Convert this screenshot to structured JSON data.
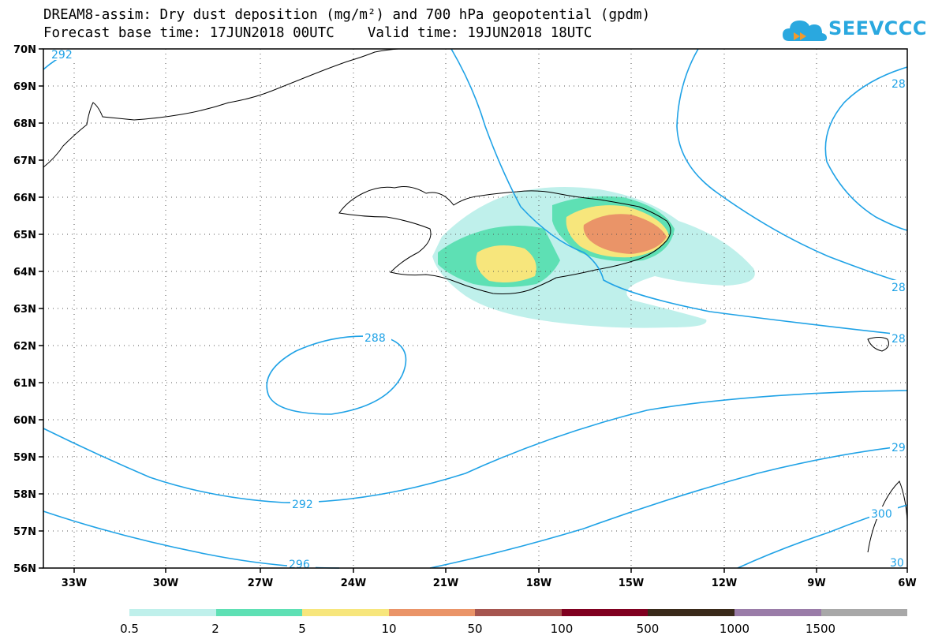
{
  "header": {
    "title_line1": "DREAM8-assim: Dry dust deposition (mg/m²) and 700 hPa geopotential (gpdm)",
    "title_line2": "Forecast base time: 17JUN2018 00UTC    Valid time: 19JUN2018 18UTC"
  },
  "logo": {
    "text": "SEEVCCC",
    "icon": "cloud-logo-icon",
    "color": "#2aa8df"
  },
  "map": {
    "lon_labels": [
      "33W",
      "30W",
      "27W",
      "24W",
      "21W",
      "18W",
      "15W",
      "12W",
      "9W",
      "6W"
    ],
    "lat_labels": [
      "56N",
      "57N",
      "58N",
      "59N",
      "60N",
      "61N",
      "62N",
      "63N",
      "64N",
      "65N",
      "66N",
      "67N",
      "68N",
      "69N",
      "70N"
    ],
    "contour_labels": [
      "292",
      "288",
      "292",
      "296",
      "28",
      "28",
      "28",
      "29",
      "300",
      "30"
    ],
    "contour_color": "#1fa2e6"
  },
  "legend": {
    "ticks": [
      "0.5",
      "2",
      "5",
      "10",
      "50",
      "100",
      "500",
      "1000",
      "1500"
    ],
    "colors": [
      "#bff0eb",
      "#5ee0b4",
      "#f7e67c",
      "#ea9468",
      "#a6554f",
      "#800020",
      "#3a2a1a",
      "#9a7ca8",
      "#a8a8a8"
    ]
  }
}
